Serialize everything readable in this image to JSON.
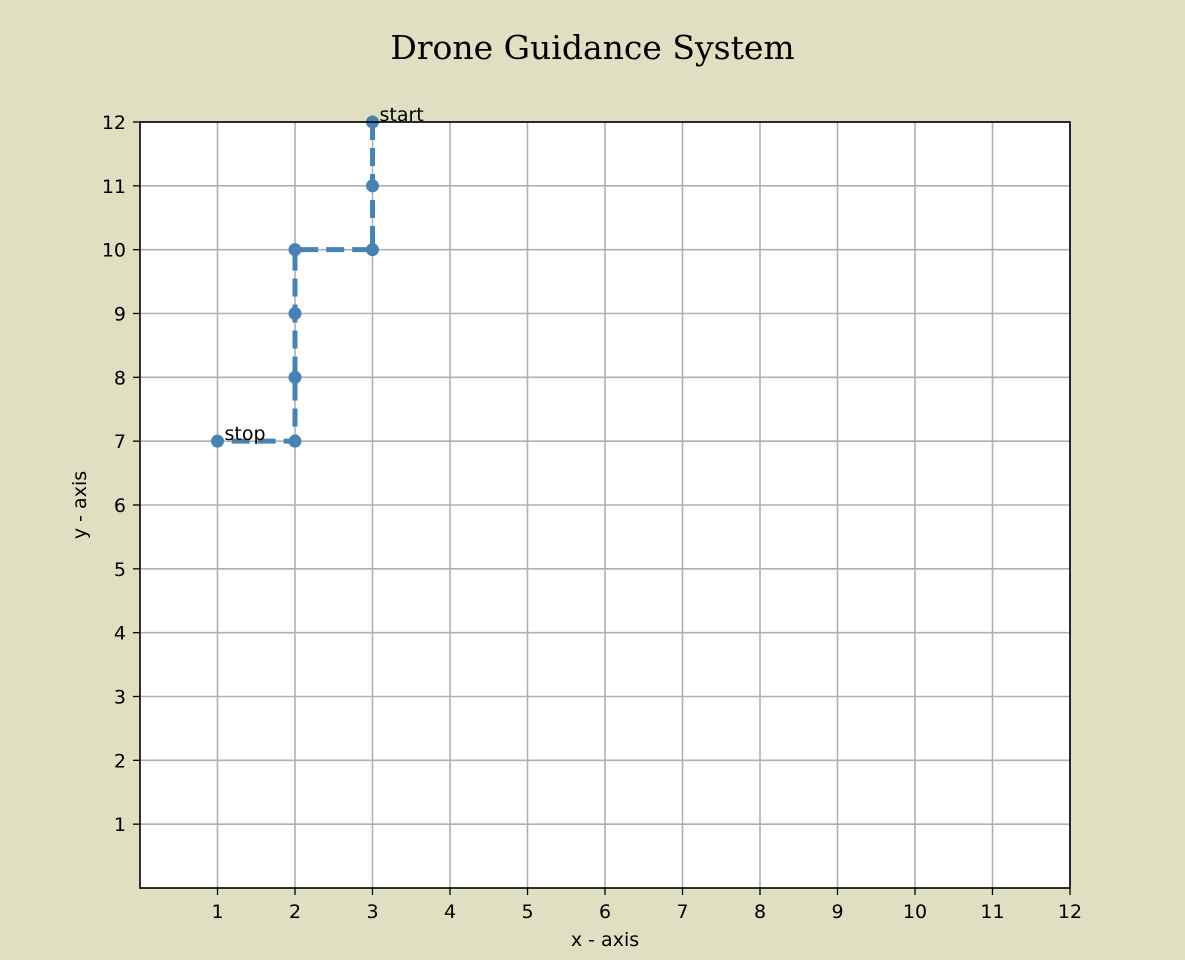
{
  "chart_data": {
    "type": "line",
    "title": "Drone Guidance System",
    "xlabel": "x - axis",
    "ylabel": "y - axis",
    "xlim": [
      0,
      12
    ],
    "ylim": [
      0,
      12
    ],
    "xticks": [
      1,
      2,
      3,
      4,
      5,
      6,
      7,
      8,
      9,
      10,
      11,
      12
    ],
    "yticks": [
      1,
      2,
      3,
      4,
      5,
      6,
      7,
      8,
      9,
      10,
      11,
      12
    ],
    "grid": true,
    "line_style": "dashed",
    "marker": "circle",
    "series": [
      {
        "color": "#4682b4",
        "points": [
          {
            "x": 3,
            "y": 12
          },
          {
            "x": 3,
            "y": 11
          },
          {
            "x": 3,
            "y": 10
          },
          {
            "x": 2,
            "y": 10
          },
          {
            "x": 2,
            "y": 9
          },
          {
            "x": 2,
            "y": 8
          },
          {
            "x": 2,
            "y": 7
          },
          {
            "x": 1,
            "y": 7
          }
        ]
      }
    ],
    "annotations": [
      {
        "text": "start",
        "x": 3,
        "y": 12
      },
      {
        "text": "stop",
        "x": 1,
        "y": 7
      }
    ],
    "colors": {
      "figure_background": "#e0dfc1",
      "plot_background": "#ffffff",
      "grid": "#b0b0b0"
    }
  }
}
